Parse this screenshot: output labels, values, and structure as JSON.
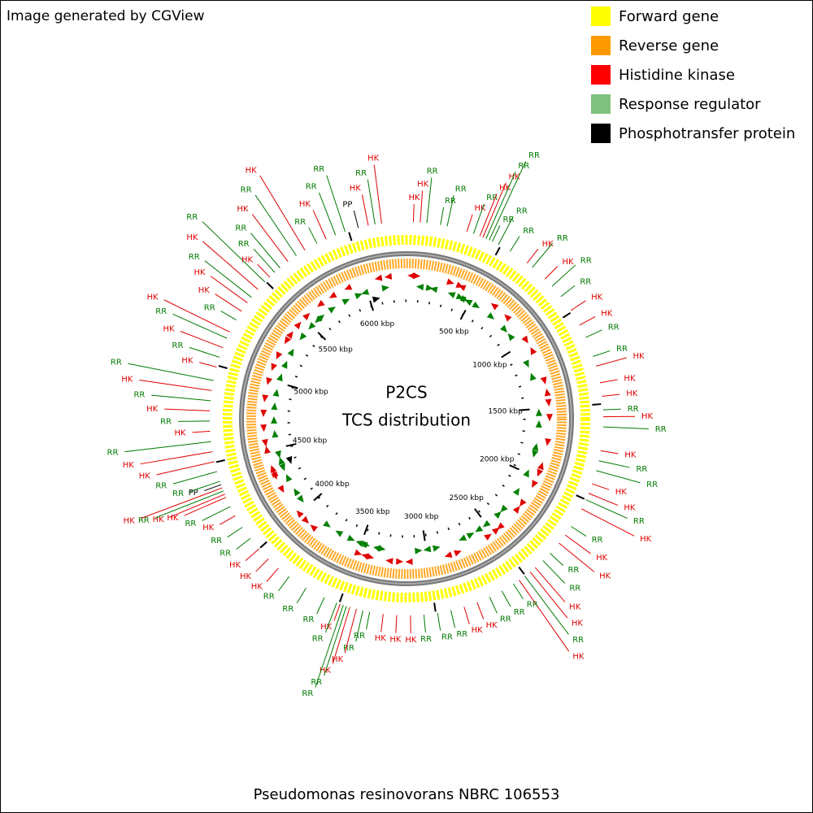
{
  "header": {
    "credit": "Image generated by CGView"
  },
  "legend": [
    {
      "name": "Forward gene",
      "color": "#ffff00"
    },
    {
      "name": "Reverse gene",
      "color": "#ff9900"
    },
    {
      "name": "Histidine kinase",
      "color": "#ff0000"
    },
    {
      "name": "Response regulator",
      "color": "#80c080"
    },
    {
      "name": "Phosphotransfer protein",
      "color": "#000000"
    }
  ],
  "map": {
    "center_title": "P2CS",
    "center_subtitle": "TCS distribution",
    "range_kbp": [
      0,
      6300
    ],
    "ticks": [
      {
        "value": 500,
        "label": "500 kbp"
      },
      {
        "value": 1000,
        "label": "1000 kbp"
      },
      {
        "value": 1500,
        "label": "1500 kbp"
      },
      {
        "value": 2000,
        "label": "2000 kbp"
      },
      {
        "value": 2500,
        "label": "2500 kbp"
      },
      {
        "value": 3000,
        "label": "3000 kbp"
      },
      {
        "value": 3500,
        "label": "3500 kbp"
      },
      {
        "value": 4000,
        "label": "4000 kbp"
      },
      {
        "value": 4500,
        "label": "4500 kbp"
      },
      {
        "value": 5000,
        "label": "5000 kbp"
      },
      {
        "value": 5500,
        "label": "5500 kbp"
      },
      {
        "value": 6000,
        "label": "6000 kbp"
      }
    ],
    "label_colors": {
      "HK": "#e00000",
      "RR": "#007a00",
      "PP": "#000000"
    },
    "features": [
      {
        "label": "HK",
        "position_kbp": 35
      },
      {
        "label": "HK",
        "position_kbp": 70
      },
      {
        "label": "RR",
        "position_kbp": 104
      },
      {
        "label": "RR",
        "position_kbp": 174
      },
      {
        "label": "RR",
        "position_kbp": 209
      },
      {
        "label": "HK",
        "position_kbp": 313
      },
      {
        "label": "RR",
        "position_kbp": 348
      },
      {
        "label": "HK",
        "position_kbp": 383
      },
      {
        "label": "HK",
        "position_kbp": 400
      },
      {
        "label": "RR",
        "position_kbp": 417
      },
      {
        "label": "RR",
        "position_kbp": 435
      },
      {
        "label": "RR",
        "position_kbp": 452
      },
      {
        "label": "RR",
        "position_kbp": 487
      },
      {
        "label": "RR",
        "position_kbp": 556
      },
      {
        "label": "HK",
        "position_kbp": 661
      },
      {
        "label": "RR",
        "position_kbp": 696
      },
      {
        "label": "HK",
        "position_kbp": 783
      },
      {
        "label": "RR",
        "position_kbp": 835
      },
      {
        "label": "RR",
        "position_kbp": 904
      },
      {
        "label": "HK",
        "position_kbp": 991
      },
      {
        "label": "HK",
        "position_kbp": 1078
      },
      {
        "label": "RR",
        "position_kbp": 1148
      },
      {
        "label": "RR",
        "position_kbp": 1252
      },
      {
        "label": "HK",
        "position_kbp": 1304
      },
      {
        "label": "HK",
        "position_kbp": 1391
      },
      {
        "label": "HK",
        "position_kbp": 1461
      },
      {
        "label": "RR",
        "position_kbp": 1530
      },
      {
        "label": "HK",
        "position_kbp": 1565
      },
      {
        "label": "RR",
        "position_kbp": 1617
      },
      {
        "label": "HK",
        "position_kbp": 1739
      },
      {
        "label": "RR",
        "position_kbp": 1791
      },
      {
        "label": "RR",
        "position_kbp": 1843
      },
      {
        "label": "HK",
        "position_kbp": 1913
      },
      {
        "label": "HK",
        "position_kbp": 1965
      },
      {
        "label": "RR",
        "position_kbp": 2000
      },
      {
        "label": "HK",
        "position_kbp": 2052
      },
      {
        "label": "RR",
        "position_kbp": 2156
      },
      {
        "label": "HK",
        "position_kbp": 2209
      },
      {
        "label": "HK",
        "position_kbp": 2261
      },
      {
        "label": "RR",
        "position_kbp": 2330
      },
      {
        "label": "RR",
        "position_kbp": 2382
      },
      {
        "label": "HK",
        "position_kbp": 2435
      },
      {
        "label": "HK",
        "position_kbp": 2469
      },
      {
        "label": "RR",
        "position_kbp": 2504
      },
      {
        "label": "HK",
        "position_kbp": 2539
      },
      {
        "label": "RR",
        "position_kbp": 2574
      },
      {
        "label": "RR",
        "position_kbp": 2643
      },
      {
        "label": "RR",
        "position_kbp": 2713
      },
      {
        "label": "HK",
        "position_kbp": 2782
      },
      {
        "label": "HK",
        "position_kbp": 2852
      },
      {
        "label": "RR",
        "position_kbp": 2922
      },
      {
        "label": "RR",
        "position_kbp": 2991
      },
      {
        "label": "RR",
        "position_kbp": 3061
      },
      {
        "label": "HK",
        "position_kbp": 3130
      },
      {
        "label": "HK",
        "position_kbp": 3200
      },
      {
        "label": "HK",
        "position_kbp": 3269
      },
      {
        "label": "RR",
        "position_kbp": 3339
      },
      {
        "label": "RR",
        "position_kbp": 3374
      },
      {
        "label": "HK",
        "position_kbp": 3408
      },
      {
        "label": "HK",
        "position_kbp": 3443
      },
      {
        "label": "RR",
        "position_kbp": 3461
      },
      {
        "label": "RR",
        "position_kbp": 3478
      },
      {
        "label": "HK",
        "position_kbp": 3495
      },
      {
        "label": "RR",
        "position_kbp": 3513
      },
      {
        "label": "RR",
        "position_kbp": 3582
      },
      {
        "label": "RR",
        "position_kbp": 3687
      },
      {
        "label": "RR",
        "position_kbp": 3791
      },
      {
        "label": "HK",
        "position_kbp": 3861
      },
      {
        "label": "HK",
        "position_kbp": 3930
      },
      {
        "label": "HK",
        "position_kbp": 4000
      },
      {
        "label": "RR",
        "position_kbp": 4069
      },
      {
        "label": "RR",
        "position_kbp": 4139
      },
      {
        "label": "HK",
        "position_kbp": 4208
      },
      {
        "label": "RR",
        "position_kbp": 4261
      },
      {
        "label": "HK",
        "position_kbp": 4313
      },
      {
        "label": "HK",
        "position_kbp": 4330
      },
      {
        "label": "RR",
        "position_kbp": 4348
      },
      {
        "label": "HK",
        "position_kbp": 4365
      },
      {
        "label": "PP",
        "position_kbp": 4382
      },
      {
        "label": "RR",
        "position_kbp": 4400
      },
      {
        "label": "RR",
        "position_kbp": 4452
      },
      {
        "label": "HK",
        "position_kbp": 4504
      },
      {
        "label": "HK",
        "position_kbp": 4556
      },
      {
        "label": "RR",
        "position_kbp": 4608
      },
      {
        "label": "HK",
        "position_kbp": 4661
      },
      {
        "label": "RR",
        "position_kbp": 4713
      },
      {
        "label": "HK",
        "position_kbp": 4765
      },
      {
        "label": "RR",
        "position_kbp": 4817
      },
      {
        "label": "HK",
        "position_kbp": 4869
      },
      {
        "label": "RR",
        "position_kbp": 4921
      },
      {
        "label": "HK",
        "position_kbp": 4991
      },
      {
        "label": "RR",
        "position_kbp": 5043
      },
      {
        "label": "HK",
        "position_kbp": 5095
      },
      {
        "label": "RR",
        "position_kbp": 5147
      },
      {
        "label": "HK",
        "position_kbp": 5182
      },
      {
        "label": "RR",
        "position_kbp": 5252
      },
      {
        "label": "HK",
        "position_kbp": 5304
      },
      {
        "label": "HK",
        "position_kbp": 5356
      },
      {
        "label": "RR",
        "position_kbp": 5391
      },
      {
        "label": "HK",
        "position_kbp": 5443
      },
      {
        "label": "RR",
        "position_kbp": 5495
      },
      {
        "label": "HK",
        "position_kbp": 5530
      },
      {
        "label": "RR",
        "position_kbp": 5565
      },
      {
        "label": "RR",
        "position_kbp": 5600
      },
      {
        "label": "HK",
        "position_kbp": 5652
      },
      {
        "label": "RR",
        "position_kbp": 5704
      },
      {
        "label": "HK",
        "position_kbp": 5756
      },
      {
        "label": "RR",
        "position_kbp": 5826
      },
      {
        "label": "HK",
        "position_kbp": 5878
      },
      {
        "label": "RR",
        "position_kbp": 5930
      },
      {
        "label": "RR",
        "position_kbp": 5982
      },
      {
        "label": "PP",
        "position_kbp": 6052
      },
      {
        "label": "HK",
        "position_kbp": 6104
      },
      {
        "label": "RR",
        "position_kbp": 6139
      },
      {
        "label": "HK",
        "position_kbp": 6173
      }
    ]
  },
  "footer": "Pseudomonas resinovorans NBRC 106553"
}
